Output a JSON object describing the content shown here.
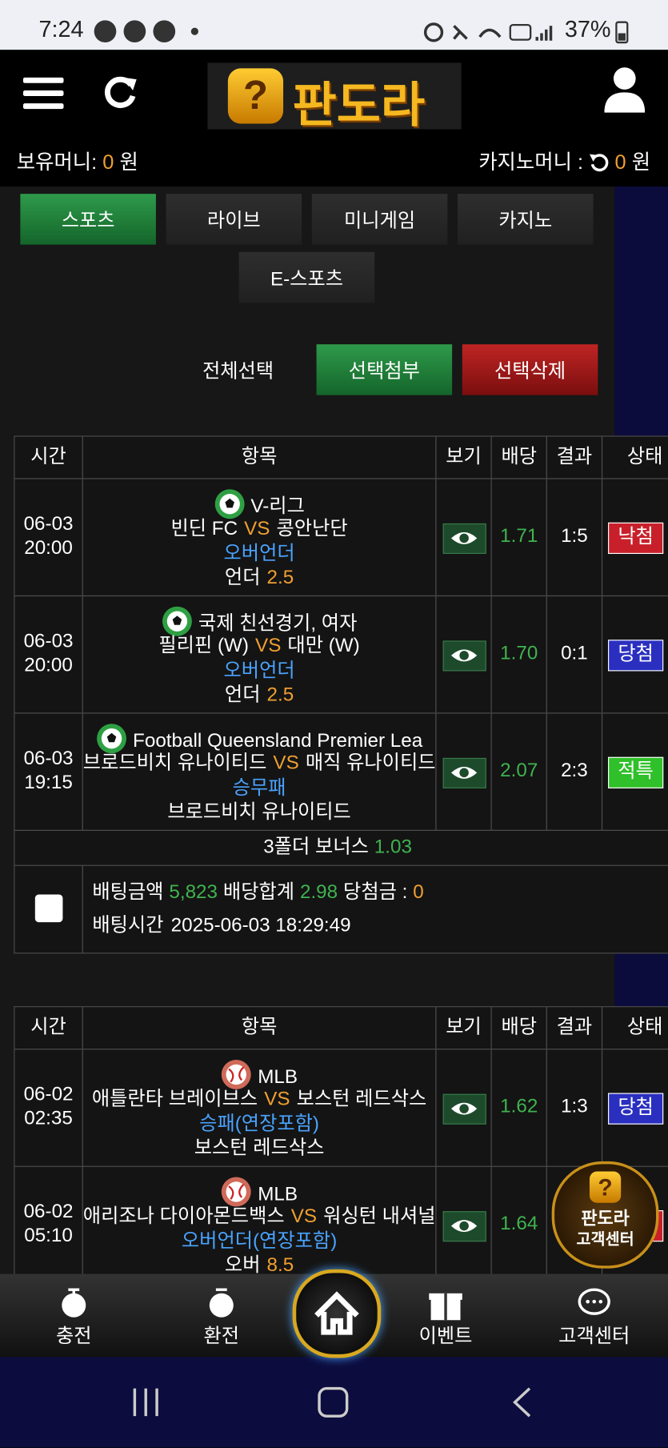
{
  "status_bar": {
    "time": "7:24",
    "battery": "37%"
  },
  "header": {
    "logo_text": "판도라"
  },
  "balance": {
    "label": "보유머니:",
    "amount": "0",
    "unit": "원",
    "casino_label": "카지노머니 :",
    "casino_amount": "0",
    "casino_unit": "원"
  },
  "tabs": [
    "스포츠",
    "라이브",
    "미니게임",
    "카지노",
    "E-스포츠"
  ],
  "actions": {
    "select_all": "전체선택",
    "attach": "선택첨부",
    "delete": "선택삭제"
  },
  "table_headers": [
    "시간",
    "항목",
    "보기",
    "배당",
    "결과",
    "상태"
  ],
  "bets": [
    {
      "rows": [
        {
          "date": "06-03",
          "time": "20:00",
          "icon": "soccer",
          "league": "V-리그",
          "home": "빈딘 FC",
          "vs": "VS",
          "away": "콩안난단",
          "market": "오버언더",
          "pick": "언더",
          "pick_value": "2.5",
          "odds": "1.71",
          "result": "1:5",
          "status": "낙첨",
          "status_color": "#c8202a"
        },
        {
          "date": "06-03",
          "time": "20:00",
          "icon": "soccer",
          "league": "국제 친선경기, 여자",
          "home": "필리핀 (W)",
          "vs": "VS",
          "away": "대만 (W)",
          "market": "오버언더",
          "pick": "언더",
          "pick_value": "2.5",
          "odds": "1.70",
          "result": "0:1",
          "status": "당첨",
          "status_color": "#2a2fc0"
        },
        {
          "date": "06-03",
          "time": "19:15",
          "icon": "soccer",
          "league": "Football Queensland Premier Lea",
          "home": "브로드비치 유나이티드",
          "vs": "VS",
          "away": "매직 유나이티드",
          "market": "승무패",
          "pick": "브로드비치 유나이티드",
          "pick_value": null,
          "odds": "2.07",
          "result": "2:3",
          "status": "적특",
          "status_color": "#2fc02a"
        }
      ],
      "bonus": {
        "label": "3폴더 보너스",
        "value": "1.03"
      },
      "summary": {
        "amount_label": "배팅금액",
        "amount": "5,823",
        "total_label": "배당합계",
        "total": "2.98",
        "win_label": "당첨금 :",
        "win": "0",
        "time_label": "배팅시간",
        "time": "2025-06-03 18:29:49"
      }
    },
    {
      "rows": [
        {
          "date": "06-02",
          "time": "02:35",
          "icon": "baseball",
          "league": "MLB",
          "home": "애틀란타 브레이브스",
          "vs": "VS",
          "away": "보스턴 레드삭스",
          "market": "승패(연장포함)",
          "pick": "보스턴 레드삭스",
          "pick_value": null,
          "odds": "1.62",
          "result": "1:3",
          "status": "당첨",
          "status_color": "#2a2fc0"
        },
        {
          "date": "06-02",
          "time": "05:10",
          "icon": "baseball",
          "league": "MLB",
          "home": "애리조나 다이아몬드백스",
          "vs": "VS",
          "away": "워싱턴 내셔널스",
          "market": "오버언더(연장포함)",
          "pick": "오버",
          "pick_value": "8.5",
          "odds": "1.64",
          "result": null,
          "status": null,
          "status_color": "#c8202a"
        }
      ]
    }
  ],
  "bottom_nav": [
    "충전",
    "환전",
    "이벤트",
    "고객센터"
  ],
  "floating_badge": {
    "line1": "판도라",
    "line2": "고객센터"
  }
}
